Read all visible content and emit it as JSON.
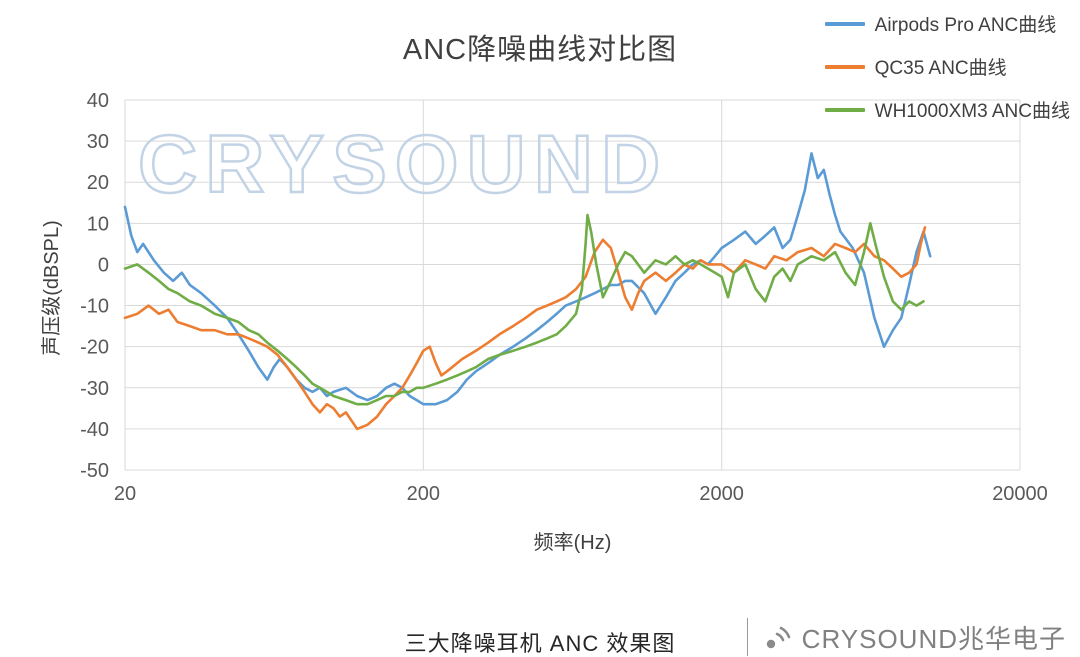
{
  "title": "ANC降噪曲线对比图",
  "watermark": "CRYSOUND",
  "caption": "三大降噪耳机 ANC 效果图",
  "footer": {
    "brand": "CRYSOUND兆华电子"
  },
  "chart_data": {
    "type": "line",
    "title": "ANC降噪曲线对比图",
    "xlabel": "频率(Hz)",
    "ylabel": "声压级(dBSPL)",
    "x_scale": "log",
    "xlim": [
      20,
      20000
    ],
    "ylim": [
      -50,
      40
    ],
    "x_ticks": [
      20,
      200,
      2000,
      20000
    ],
    "y_ticks": [
      40,
      30,
      20,
      10,
      0,
      -10,
      -20,
      -30,
      -40,
      -50
    ],
    "grid": true,
    "legend_position": "top-right",
    "series": [
      {
        "name": "Airpods Pro ANC曲线",
        "color": "#5B9BD5",
        "points": [
          [
            20,
            14
          ],
          [
            21,
            7
          ],
          [
            22,
            3
          ],
          [
            23,
            5
          ],
          [
            25,
            1
          ],
          [
            27,
            -2
          ],
          [
            29,
            -4
          ],
          [
            31,
            -2
          ],
          [
            33,
            -5
          ],
          [
            36,
            -7
          ],
          [
            40,
            -10
          ],
          [
            44,
            -13
          ],
          [
            48,
            -17
          ],
          [
            52,
            -21
          ],
          [
            56,
            -25
          ],
          [
            60,
            -28
          ],
          [
            63,
            -25
          ],
          [
            66,
            -23
          ],
          [
            70,
            -25
          ],
          [
            75,
            -28
          ],
          [
            80,
            -30
          ],
          [
            85,
            -31
          ],
          [
            90,
            -30
          ],
          [
            95,
            -32
          ],
          [
            100,
            -31
          ],
          [
            110,
            -30
          ],
          [
            120,
            -32
          ],
          [
            130,
            -33
          ],
          [
            140,
            -32
          ],
          [
            150,
            -30
          ],
          [
            160,
            -29
          ],
          [
            170,
            -30
          ],
          [
            180,
            -32
          ],
          [
            190,
            -33
          ],
          [
            200,
            -34
          ],
          [
            220,
            -34
          ],
          [
            240,
            -33
          ],
          [
            260,
            -31
          ],
          [
            280,
            -28
          ],
          [
            300,
            -26
          ],
          [
            330,
            -24
          ],
          [
            360,
            -22
          ],
          [
            400,
            -20
          ],
          [
            440,
            -18
          ],
          [
            480,
            -16
          ],
          [
            520,
            -14
          ],
          [
            560,
            -12
          ],
          [
            600,
            -10
          ],
          [
            650,
            -9
          ],
          [
            700,
            -8
          ],
          [
            750,
            -7
          ],
          [
            800,
            -6
          ],
          [
            850,
            -5
          ],
          [
            900,
            -5
          ],
          [
            950,
            -4
          ],
          [
            1000,
            -4
          ],
          [
            1100,
            -7
          ],
          [
            1200,
            -12
          ],
          [
            1300,
            -8
          ],
          [
            1400,
            -4
          ],
          [
            1500,
            -2
          ],
          [
            1600,
            0
          ],
          [
            1700,
            1
          ],
          [
            1800,
            0
          ],
          [
            1900,
            2
          ],
          [
            2000,
            4
          ],
          [
            2200,
            6
          ],
          [
            2400,
            8
          ],
          [
            2600,
            5
          ],
          [
            2800,
            7
          ],
          [
            3000,
            9
          ],
          [
            3200,
            4
          ],
          [
            3400,
            6
          ],
          [
            3600,
            12
          ],
          [
            3800,
            18
          ],
          [
            4000,
            27
          ],
          [
            4200,
            21
          ],
          [
            4400,
            23
          ],
          [
            4600,
            17
          ],
          [
            4800,
            12
          ],
          [
            5000,
            8
          ],
          [
            5500,
            4
          ],
          [
            6000,
            -2
          ],
          [
            6500,
            -13
          ],
          [
            7000,
            -20
          ],
          [
            7500,
            -16
          ],
          [
            8000,
            -13
          ],
          [
            8500,
            -5
          ],
          [
            9000,
            3
          ],
          [
            9500,
            8
          ],
          [
            10000,
            2
          ]
        ]
      },
      {
        "name": "QC35 ANC曲线",
        "color": "#ED7D31",
        "points": [
          [
            20,
            -13
          ],
          [
            22,
            -12
          ],
          [
            24,
            -10
          ],
          [
            26,
            -12
          ],
          [
            28,
            -11
          ],
          [
            30,
            -14
          ],
          [
            33,
            -15
          ],
          [
            36,
            -16
          ],
          [
            40,
            -16
          ],
          [
            44,
            -17
          ],
          [
            48,
            -17
          ],
          [
            52,
            -18
          ],
          [
            56,
            -19
          ],
          [
            60,
            -20
          ],
          [
            65,
            -22
          ],
          [
            70,
            -25
          ],
          [
            75,
            -28
          ],
          [
            80,
            -31
          ],
          [
            85,
            -34
          ],
          [
            90,
            -36
          ],
          [
            95,
            -34
          ],
          [
            100,
            -35
          ],
          [
            105,
            -37
          ],
          [
            110,
            -36
          ],
          [
            115,
            -38
          ],
          [
            120,
            -40
          ],
          [
            130,
            -39
          ],
          [
            140,
            -37
          ],
          [
            150,
            -34
          ],
          [
            160,
            -32
          ],
          [
            170,
            -30
          ],
          [
            180,
            -27
          ],
          [
            190,
            -24
          ],
          [
            200,
            -21
          ],
          [
            210,
            -20
          ],
          [
            220,
            -24
          ],
          [
            230,
            -27
          ],
          [
            240,
            -26
          ],
          [
            250,
            -25
          ],
          [
            270,
            -23
          ],
          [
            300,
            -21
          ],
          [
            330,
            -19
          ],
          [
            360,
            -17
          ],
          [
            400,
            -15
          ],
          [
            440,
            -13
          ],
          [
            480,
            -11
          ],
          [
            520,
            -10
          ],
          [
            560,
            -9
          ],
          [
            600,
            -8
          ],
          [
            650,
            -6
          ],
          [
            700,
            -3
          ],
          [
            750,
            3
          ],
          [
            800,
            6
          ],
          [
            850,
            4
          ],
          [
            900,
            -2
          ],
          [
            950,
            -8
          ],
          [
            1000,
            -11
          ],
          [
            1050,
            -7
          ],
          [
            1100,
            -4
          ],
          [
            1200,
            -2
          ],
          [
            1300,
            -4
          ],
          [
            1400,
            -2
          ],
          [
            1500,
            0
          ],
          [
            1600,
            -1
          ],
          [
            1700,
            1
          ],
          [
            1800,
            0
          ],
          [
            2000,
            0
          ],
          [
            2200,
            -2
          ],
          [
            2400,
            1
          ],
          [
            2600,
            0
          ],
          [
            2800,
            -1
          ],
          [
            3000,
            2
          ],
          [
            3300,
            1
          ],
          [
            3600,
            3
          ],
          [
            4000,
            4
          ],
          [
            4400,
            2
          ],
          [
            4800,
            5
          ],
          [
            5200,
            4
          ],
          [
            5600,
            3
          ],
          [
            6000,
            5
          ],
          [
            6500,
            2
          ],
          [
            7000,
            1
          ],
          [
            7500,
            -1
          ],
          [
            8000,
            -3
          ],
          [
            8500,
            -2
          ],
          [
            9000,
            0
          ],
          [
            9300,
            5
          ],
          [
            9600,
            9
          ]
        ]
      },
      {
        "name": "WH1000XM3 ANC曲线",
        "color": "#70AD47",
        "points": [
          [
            20,
            -1
          ],
          [
            22,
            0
          ],
          [
            24,
            -2
          ],
          [
            26,
            -4
          ],
          [
            28,
            -6
          ],
          [
            30,
            -7
          ],
          [
            33,
            -9
          ],
          [
            36,
            -10
          ],
          [
            40,
            -12
          ],
          [
            44,
            -13
          ],
          [
            48,
            -14
          ],
          [
            52,
            -16
          ],
          [
            56,
            -17
          ],
          [
            60,
            -19
          ],
          [
            65,
            -21
          ],
          [
            70,
            -23
          ],
          [
            75,
            -25
          ],
          [
            80,
            -27
          ],
          [
            85,
            -29
          ],
          [
            90,
            -30
          ],
          [
            95,
            -31
          ],
          [
            100,
            -32
          ],
          [
            110,
            -33
          ],
          [
            120,
            -34
          ],
          [
            130,
            -34
          ],
          [
            140,
            -33
          ],
          [
            150,
            -32
          ],
          [
            160,
            -32
          ],
          [
            170,
            -31
          ],
          [
            180,
            -31
          ],
          [
            190,
            -30
          ],
          [
            200,
            -30
          ],
          [
            220,
            -29
          ],
          [
            240,
            -28
          ],
          [
            260,
            -27
          ],
          [
            280,
            -26
          ],
          [
            300,
            -25
          ],
          [
            330,
            -23
          ],
          [
            360,
            -22
          ],
          [
            400,
            -21
          ],
          [
            440,
            -20
          ],
          [
            480,
            -19
          ],
          [
            520,
            -18
          ],
          [
            560,
            -17
          ],
          [
            600,
            -15
          ],
          [
            650,
            -12
          ],
          [
            680,
            -6
          ],
          [
            700,
            5
          ],
          [
            710,
            12
          ],
          [
            730,
            8
          ],
          [
            760,
            0
          ],
          [
            800,
            -8
          ],
          [
            850,
            -4
          ],
          [
            900,
            0
          ],
          [
            950,
            3
          ],
          [
            1000,
            2
          ],
          [
            1100,
            -2
          ],
          [
            1200,
            1
          ],
          [
            1300,
            0
          ],
          [
            1400,
            2
          ],
          [
            1500,
            0
          ],
          [
            1600,
            1
          ],
          [
            1700,
            0
          ],
          [
            1800,
            -1
          ],
          [
            1900,
            -2
          ],
          [
            2000,
            -3
          ],
          [
            2100,
            -8
          ],
          [
            2200,
            -2
          ],
          [
            2400,
            0
          ],
          [
            2600,
            -6
          ],
          [
            2800,
            -9
          ],
          [
            3000,
            -3
          ],
          [
            3200,
            -1
          ],
          [
            3400,
            -4
          ],
          [
            3600,
            0
          ],
          [
            3800,
            1
          ],
          [
            4000,
            2
          ],
          [
            4400,
            1
          ],
          [
            4800,
            3
          ],
          [
            5200,
            -2
          ],
          [
            5600,
            -5
          ],
          [
            6000,
            3
          ],
          [
            6300,
            10
          ],
          [
            6600,
            4
          ],
          [
            7000,
            -3
          ],
          [
            7500,
            -9
          ],
          [
            8000,
            -11
          ],
          [
            8500,
            -9
          ],
          [
            9000,
            -10
          ],
          [
            9500,
            -9
          ]
        ]
      }
    ]
  }
}
